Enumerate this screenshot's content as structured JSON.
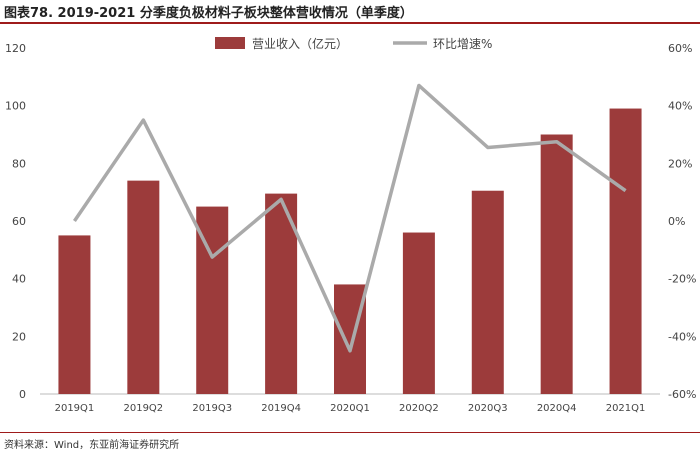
{
  "header": {
    "title": "图表78. 2019-2021 分季度负极材料子板块整体营收情况（单季度）"
  },
  "source": "资料来源：Wind，东亚前海证券研究所",
  "colors": {
    "bar": "#9c3b3b",
    "line": "#aaaaaa",
    "accent": "#9e1b1b"
  },
  "chart_data": {
    "type": "bar",
    "title": "",
    "categories": [
      "2019Q1",
      "2019Q2",
      "2019Q3",
      "2019Q4",
      "2020Q1",
      "2020Q2",
      "2020Q3",
      "2020Q4",
      "2021Q1"
    ],
    "series": [
      {
        "name": "营业收入（亿元）",
        "type": "bar",
        "axis": "left",
        "values": [
          55,
          74,
          65,
          69.5,
          38,
          56,
          70.5,
          90,
          99
        ]
      },
      {
        "name": "环比增速%",
        "type": "line",
        "axis": "right",
        "values": [
          0,
          35,
          -12.5,
          7.5,
          -45,
          47,
          25.5,
          27.5,
          10.5
        ]
      }
    ],
    "y_left": {
      "ylim": [
        0,
        120
      ],
      "ticks": [
        0,
        20,
        40,
        60,
        80,
        100,
        120
      ]
    },
    "y_right": {
      "ylim": [
        -60,
        60
      ],
      "ticks": [
        "-60%",
        "-40%",
        "-20%",
        "0%",
        "20%",
        "40%",
        "60%"
      ]
    },
    "legend": "top-center",
    "grid": false
  }
}
